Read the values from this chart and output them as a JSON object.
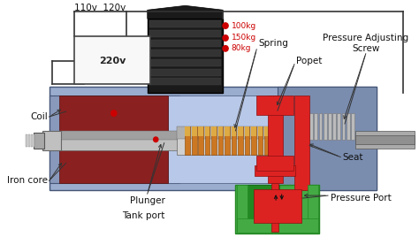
{
  "colors": {
    "main_body": "#9aadcf",
    "body_dark": "#7a8daf",
    "coil_red": "#8b2020",
    "plunger_light": "#c0c0c0",
    "plunger_mid": "#a0a0a0",
    "plunger_dark": "#808080",
    "spring_orange": "#cc7722",
    "red_part": "#dd2222",
    "green_part": "#44aa44",
    "black_conn": "#1a1a1a",
    "white_bg": "#ffffff",
    "screw_gray": "#999999",
    "dot_red": "#cc0000",
    "wire_color": "#333333",
    "edge_blue": "#445577",
    "spring_gray": "#bbbbbb",
    "body_mid": "#8899bb"
  },
  "annotations": {
    "110v_120v": "110v  120v",
    "220v": "220v",
    "coil": "Coil",
    "iron_core": "Iron core",
    "plunger": "Plunger",
    "tank_port": "Tank port",
    "spring": "Spring",
    "popet": "Popet",
    "seat": "Seat",
    "pressure_port": "Pressure Port",
    "pressure_adj": "Pressure Adjusting\nScrew",
    "100kg": "100kg",
    "150kg": "150kg",
    "80kg": "80kg"
  }
}
